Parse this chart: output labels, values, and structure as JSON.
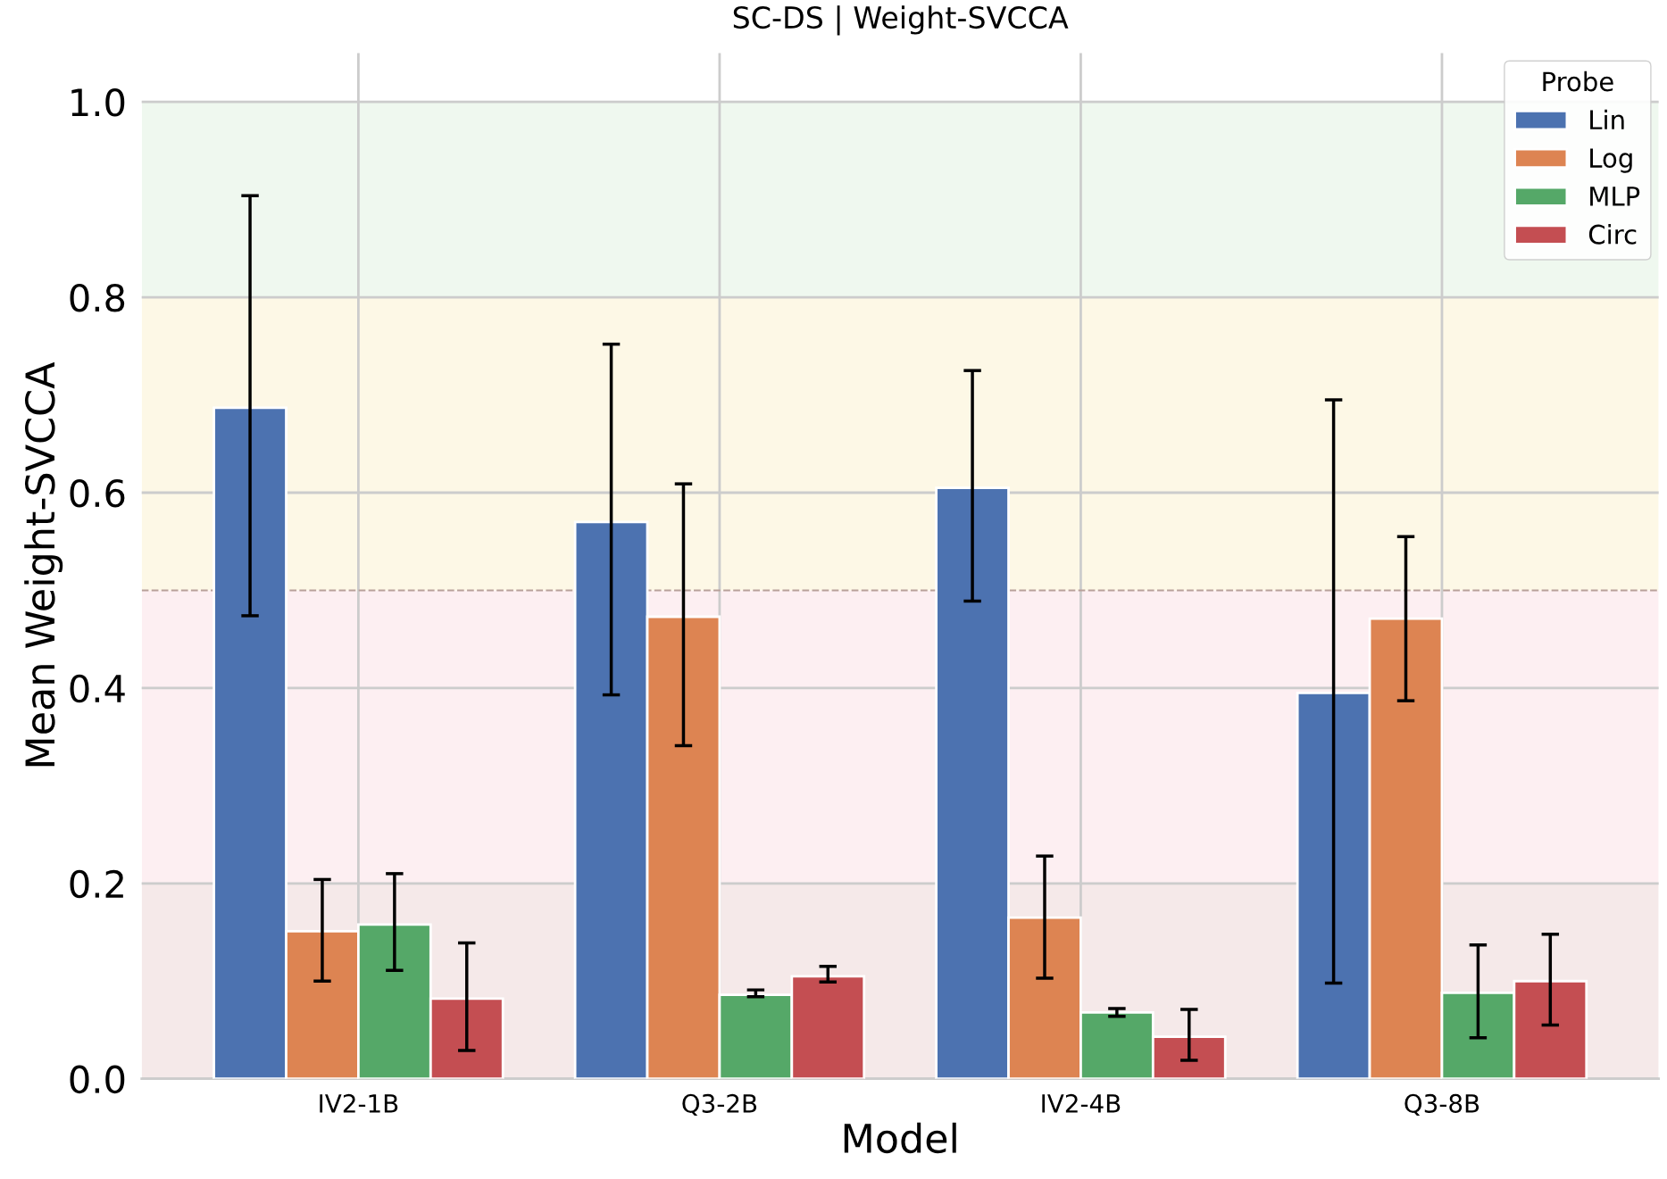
{
  "chart_data": {
    "type": "bar",
    "title": "SC-DS | Weight-SVCCA",
    "xlabel": "Model",
    "ylabel": "Mean Weight-SVCCA",
    "categories": [
      "IV2-1B",
      "Q3-2B",
      "IV2-4B",
      "Q3-8B"
    ],
    "series": [
      {
        "name": "Lin",
        "color": "#4c72b0",
        "values": [
          0.687,
          0.57,
          0.605,
          0.395
        ],
        "errors": [
          [
            0.474,
            0.904
          ],
          [
            0.393,
            0.752
          ],
          [
            0.489,
            0.725
          ],
          [
            0.098,
            0.695
          ]
        ]
      },
      {
        "name": "Log",
        "color": "#dd8452",
        "values": [
          0.151,
          0.473,
          0.165,
          0.471
        ],
        "errors": [
          [
            0.1,
            0.204
          ],
          [
            0.341,
            0.609
          ],
          [
            0.103,
            0.228
          ],
          [
            0.387,
            0.555
          ]
        ]
      },
      {
        "name": "MLP",
        "color": "#55a868",
        "values": [
          0.158,
          0.086,
          0.068,
          0.088
        ],
        "errors": [
          [
            0.111,
            0.21
          ],
          [
            0.084,
            0.091
          ],
          [
            0.064,
            0.072
          ],
          [
            0.042,
            0.137
          ]
        ]
      },
      {
        "name": "Circ",
        "color": "#c44e52",
        "values": [
          0.082,
          0.105,
          0.043,
          0.1
        ],
        "errors": [
          [
            0.029,
            0.139
          ],
          [
            0.099,
            0.115
          ],
          [
            0.019,
            0.071
          ],
          [
            0.055,
            0.148
          ]
        ]
      }
    ],
    "ylim": [
      0,
      1.05
    ],
    "yticks": [
      {
        "value": 0,
        "label": "0.0"
      },
      {
        "value": 0.2,
        "label": "0.2"
      },
      {
        "value": 0.4,
        "label": "0.4"
      },
      {
        "value": 0.6,
        "label": "0.6"
      },
      {
        "value": 0.8,
        "label": "0.8"
      },
      {
        "value": 1.0,
        "label": "1.0"
      }
    ],
    "bands": [
      {
        "axis": "y",
        "from": 0,
        "to": 0.2,
        "color": "#f5e9e9"
      },
      {
        "axis": "y",
        "from": 0.2,
        "to": 0.5,
        "color": "#fdeff2"
      },
      {
        "axis": "y",
        "from": 0.5,
        "to": 0.8,
        "color": "#fdf8e6"
      },
      {
        "axis": "y",
        "from": 0.8,
        "to": 1.0,
        "color": "#eff8ef"
      }
    ],
    "ref_lines": [
      {
        "axis": "y",
        "value": 0.5,
        "color": "#b8a09a",
        "line_style": "dashed"
      }
    ],
    "grid": true,
    "legend": "top right",
    "legend_title": "Probe"
  }
}
